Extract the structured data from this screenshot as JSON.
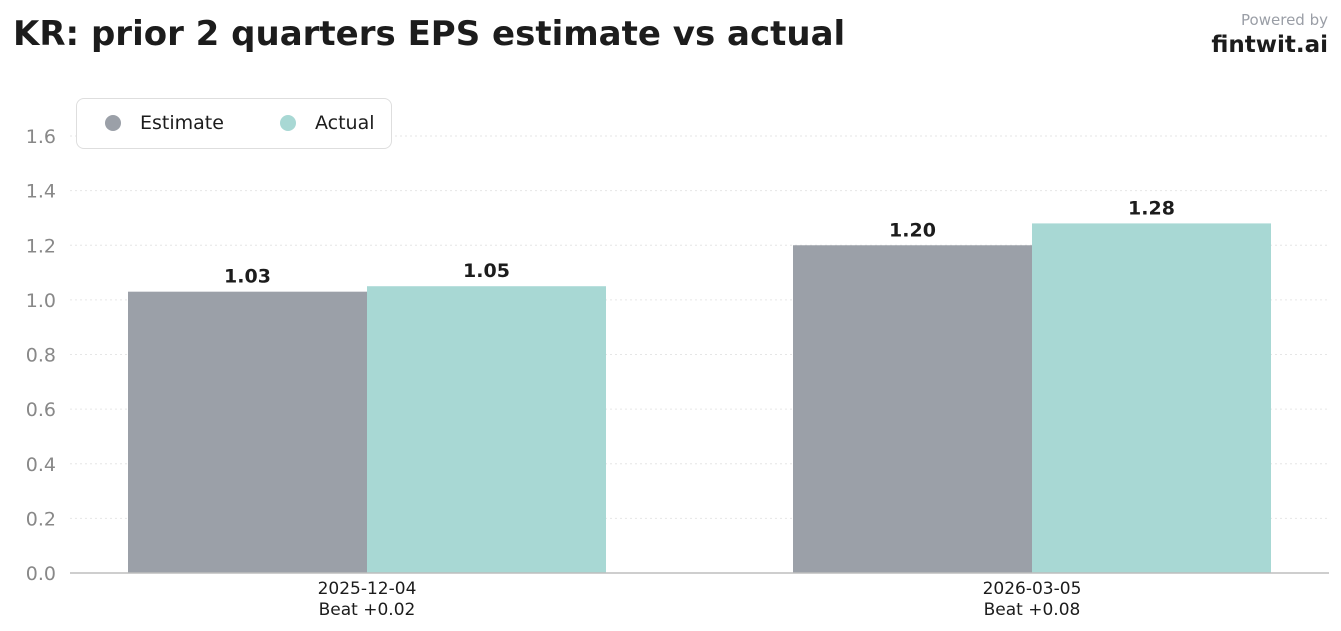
{
  "header": {
    "title": "KR: prior 2 quarters EPS estimate vs actual",
    "powered_by": "Powered by",
    "brand": "fintwit.ai"
  },
  "colors": {
    "estimate": "#9ba0a8",
    "actual": "#a8d8d4",
    "grid": "#e6e6e6",
    "axis": "#bdbdbd",
    "tick_text": "#888888",
    "text": "#1c1c1c"
  },
  "chart_data": {
    "type": "bar",
    "title": "KR: prior 2 quarters EPS estimate vs actual",
    "xlabel": "",
    "ylabel": "",
    "categories": [
      "2025-12-04",
      "2026-03-05"
    ],
    "category_notes": [
      "Beat +0.02",
      "Beat +0.08"
    ],
    "series": [
      {
        "name": "Estimate",
        "values": [
          1.03,
          1.2
        ],
        "labels": [
          "1.03",
          "1.20"
        ]
      },
      {
        "name": "Actual",
        "values": [
          1.05,
          1.28
        ],
        "labels": [
          "1.05",
          "1.28"
        ]
      }
    ],
    "ylim": [
      0,
      1.6
    ],
    "yticks": [
      "0.0",
      "0.2",
      "0.4",
      "0.6",
      "0.8",
      "1.0",
      "1.2",
      "1.4",
      "1.6"
    ],
    "grid": true,
    "legend": "top-left"
  }
}
